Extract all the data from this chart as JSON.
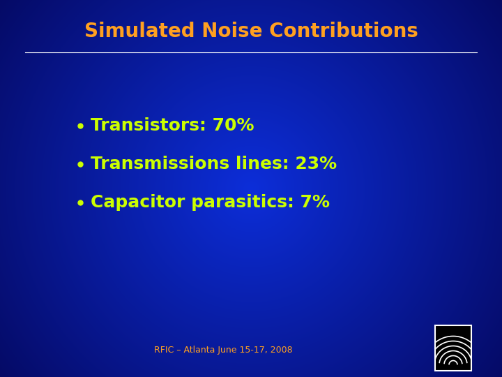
{
  "title": "Simulated Noise Contributions",
  "title_color": "#FFA020",
  "title_fontsize": 20,
  "title_fontweight": "bold",
  "title_fontstyle": "normal",
  "bullet_items": [
    "Transistors: 70%",
    "Transmissions lines: 23%",
    "Capacitor parasitics: 7%"
  ],
  "bullet_color": "#CCFF00",
  "bullet_fontsize": 18,
  "bullet_fontweight": "bold",
  "footer_text": "RFIC – Atlanta June 15-17, 2008",
  "footer_color": "#FFA020",
  "footer_fontsize": 9,
  "fig_width": 7.2,
  "fig_height": 5.4,
  "dpi": 100
}
